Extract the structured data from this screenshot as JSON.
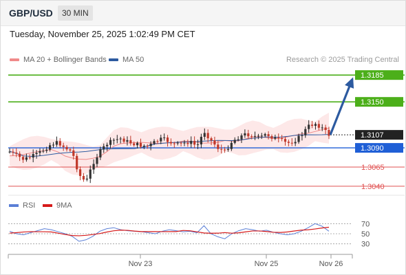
{
  "header": {
    "symbol": "GBP/USD",
    "interval": "30 MIN"
  },
  "timestamp": "Tuesday, November 25, 2025 1:02:49 PM CET",
  "legend": {
    "items": [
      {
        "label": "MA 20 + Bollinger Bands",
        "color": "#f08a8a"
      },
      {
        "label": "MA 50",
        "color": "#2c5aa0"
      }
    ],
    "credit": "Research © 2025 Trading Central"
  },
  "colors": {
    "resistance": "#4caf1a",
    "current": "#222222",
    "pivot": "#1f5fd6",
    "support": "#e05050",
    "band_fill": "#fde6e6",
    "arrow": "#2c5aa0",
    "candle_up": "#222222",
    "candle_down": "#c0392b"
  },
  "levels": [
    {
      "value": 1.3185,
      "label": "1.3185",
      "kind": "resistance"
    },
    {
      "value": 1.315,
      "label": "1.3150",
      "kind": "resistance"
    },
    {
      "value": 1.3107,
      "label": "1.3107",
      "kind": "current"
    },
    {
      "value": 1.309,
      "label": "1.3090",
      "kind": "pivot"
    },
    {
      "value": 1.3065,
      "label": "1.3065",
      "kind": "support"
    },
    {
      "value": 1.304,
      "label": "1.3040",
      "kind": "support"
    }
  ],
  "rsi": {
    "legend": [
      {
        "label": "RSI",
        "color": "#5b7fd6"
      },
      {
        "label": "9MA",
        "color": "#d61a1a"
      }
    ],
    "ticks": [
      "70",
      "50",
      "30"
    ]
  },
  "xaxis": {
    "ticks": [
      "Nov 23",
      "Nov 25",
      "Nov 26"
    ]
  },
  "chart_data": {
    "type": "line",
    "title": "GBP/USD",
    "interval": "30 MIN",
    "ylim": [
      1.303,
      1.3195
    ],
    "x_ticks": [
      "Nov 23",
      "Nov 25",
      "Nov 26"
    ],
    "series": [
      {
        "name": "MA 20 + Bollinger Bands"
      },
      {
        "name": "MA 50"
      },
      {
        "name": "RSI"
      },
      {
        "name": "9MA"
      }
    ],
    "price_path": [
      1.3085,
      1.308,
      1.3075,
      1.3078,
      1.3082,
      1.3088,
      1.3095,
      1.3097,
      1.309,
      1.3085,
      1.3055,
      1.3045,
      1.307,
      1.3085,
      1.3095,
      1.31,
      1.3102,
      1.3098,
      1.3095,
      1.3093,
      1.3092,
      1.3098,
      1.3102,
      1.3098,
      1.3094,
      1.3096,
      1.3098,
      1.3092,
      1.3112,
      1.31,
      1.309,
      1.3085,
      1.3098,
      1.3104,
      1.3108,
      1.3106,
      1.3103,
      1.3108,
      1.3103,
      1.31,
      1.3096,
      1.3099,
      1.3106,
      1.3118,
      1.3122,
      1.3116,
      1.3107
    ],
    "rsi_values": [
      55,
      50,
      48,
      52,
      56,
      60,
      58,
      54,
      50,
      45,
      35,
      38,
      45,
      55,
      60,
      62,
      58,
      56,
      55,
      54,
      52,
      50,
      55,
      58,
      56,
      54,
      55,
      52,
      66,
      50,
      44,
      40,
      50,
      56,
      60,
      58,
      55,
      57,
      53,
      50,
      48,
      50,
      55,
      62,
      70,
      65,
      55
    ],
    "forecast_target": 1.3185,
    "rsi_ylim": [
      20,
      80
    ]
  }
}
